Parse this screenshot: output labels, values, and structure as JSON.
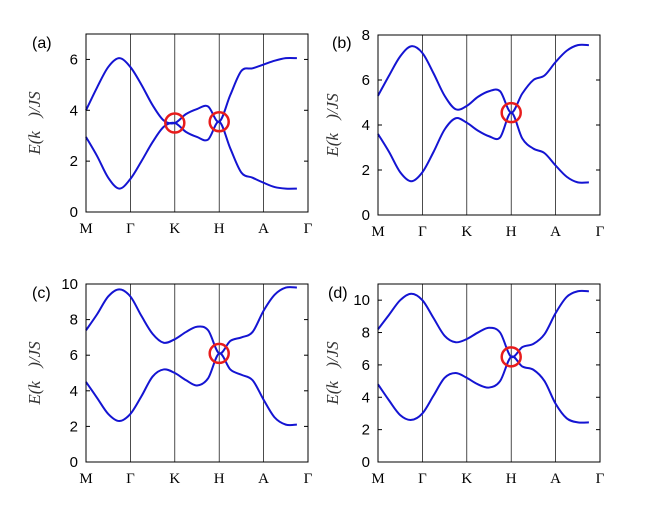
{
  "chart_data": [
    {
      "type": "line",
      "panel_label": "(a)",
      "ylabel": "E(k⃗)/JS",
      "ylim": [
        0,
        7
      ],
      "yticks": [
        0,
        2,
        4,
        6
      ],
      "x_ticks": [
        "M",
        "Γ",
        "K",
        "H",
        "A",
        "Γ"
      ],
      "series": [
        {
          "values": [
            [
              0,
              4.0
            ],
            [
              0.25,
              4.9
            ],
            [
              0.5,
              5.7
            ],
            [
              0.75,
              6.05
            ],
            [
              1,
              5.7
            ],
            [
              1.25,
              5.0
            ],
            [
              1.5,
              4.2
            ],
            [
              1.75,
              3.6
            ],
            [
              2,
              3.5
            ],
            [
              2.25,
              3.85
            ],
            [
              2.5,
              4.05
            ],
            [
              2.75,
              4.15
            ],
            [
              3,
              3.55
            ],
            [
              3.25,
              4.6
            ],
            [
              3.5,
              5.55
            ],
            [
              3.75,
              5.65
            ],
            [
              4,
              5.8
            ],
            [
              4.25,
              5.95
            ],
            [
              4.5,
              6.05
            ],
            [
              4.75,
              6.05
            ]
          ]
        },
        {
          "values": [
            [
              0,
              2.95
            ],
            [
              0.25,
              2.2
            ],
            [
              0.5,
              1.35
            ],
            [
              0.75,
              0.92
            ],
            [
              1,
              1.3
            ],
            [
              1.25,
              2.0
            ],
            [
              1.5,
              2.75
            ],
            [
              1.75,
              3.35
            ],
            [
              2,
              3.5
            ],
            [
              2.25,
              3.15
            ],
            [
              2.5,
              2.95
            ],
            [
              2.75,
              2.85
            ],
            [
              3,
              3.55
            ],
            [
              3.25,
              2.5
            ],
            [
              3.5,
              1.55
            ],
            [
              3.75,
              1.35
            ],
            [
              4,
              1.15
            ],
            [
              4.25,
              0.98
            ],
            [
              4.5,
              0.92
            ],
            [
              4.75,
              0.92
            ]
          ]
        }
      ],
      "crossings": [
        [
          2,
          3.5
        ],
        [
          3,
          3.55
        ]
      ]
    },
    {
      "type": "line",
      "panel_label": "(b)",
      "ylabel": "E(k⃗)/JS",
      "ylim": [
        0,
        8
      ],
      "yticks": [
        0,
        2,
        4,
        6,
        8
      ],
      "x_ticks": [
        "M",
        "Γ",
        "K",
        "H",
        "A",
        "Γ"
      ],
      "series": [
        {
          "values": [
            [
              0,
              5.3
            ],
            [
              0.25,
              6.2
            ],
            [
              0.5,
              7.05
            ],
            [
              0.75,
              7.5
            ],
            [
              1,
              7.2
            ],
            [
              1.25,
              6.3
            ],
            [
              1.5,
              5.3
            ],
            [
              1.75,
              4.7
            ],
            [
              2,
              4.85
            ],
            [
              2.25,
              5.25
            ],
            [
              2.5,
              5.5
            ],
            [
              2.75,
              5.5
            ],
            [
              3,
              4.55
            ],
            [
              3.25,
              5.4
            ],
            [
              3.5,
              6.0
            ],
            [
              3.75,
              6.2
            ],
            [
              4,
              6.8
            ],
            [
              4.25,
              7.3
            ],
            [
              4.5,
              7.55
            ],
            [
              4.75,
              7.55
            ]
          ]
        },
        {
          "values": [
            [
              0,
              3.6
            ],
            [
              0.25,
              2.8
            ],
            [
              0.5,
              1.9
            ],
            [
              0.75,
              1.5
            ],
            [
              1,
              1.9
            ],
            [
              1.25,
              2.8
            ],
            [
              1.5,
              3.8
            ],
            [
              1.75,
              4.3
            ],
            [
              2,
              4.1
            ],
            [
              2.25,
              3.75
            ],
            [
              2.5,
              3.5
            ],
            [
              2.75,
              3.45
            ],
            [
              3,
              4.55
            ],
            [
              3.25,
              3.4
            ],
            [
              3.5,
              2.95
            ],
            [
              3.75,
              2.75
            ],
            [
              4,
              2.2
            ],
            [
              4.25,
              1.7
            ],
            [
              4.5,
              1.45
            ],
            [
              4.75,
              1.45
            ]
          ]
        }
      ],
      "crossings": [
        [
          3,
          4.55
        ]
      ]
    },
    {
      "type": "line",
      "panel_label": "(c)",
      "ylabel": "E(k⃗)/JS",
      "ylim": [
        0,
        10
      ],
      "yticks": [
        0,
        2,
        4,
        6,
        8,
        10
      ],
      "x_ticks": [
        "M",
        "Γ",
        "K",
        "H",
        "A",
        "Γ"
      ],
      "series": [
        {
          "values": [
            [
              0,
              7.4
            ],
            [
              0.25,
              8.3
            ],
            [
              0.5,
              9.3
            ],
            [
              0.75,
              9.7
            ],
            [
              1,
              9.3
            ],
            [
              1.25,
              8.2
            ],
            [
              1.5,
              7.2
            ],
            [
              1.75,
              6.7
            ],
            [
              2,
              6.9
            ],
            [
              2.25,
              7.3
            ],
            [
              2.5,
              7.6
            ],
            [
              2.75,
              7.4
            ],
            [
              3,
              6.1
            ],
            [
              3.25,
              6.8
            ],
            [
              3.5,
              7.0
            ],
            [
              3.75,
              7.3
            ],
            [
              4,
              8.5
            ],
            [
              4.25,
              9.4
            ],
            [
              4.5,
              9.8
            ],
            [
              4.75,
              9.8
            ]
          ]
        },
        {
          "values": [
            [
              0,
              4.5
            ],
            [
              0.25,
              3.6
            ],
            [
              0.5,
              2.7
            ],
            [
              0.75,
              2.3
            ],
            [
              1,
              2.7
            ],
            [
              1.25,
              3.7
            ],
            [
              1.5,
              4.8
            ],
            [
              1.75,
              5.2
            ],
            [
              2,
              5.0
            ],
            [
              2.25,
              4.6
            ],
            [
              2.5,
              4.3
            ],
            [
              2.75,
              4.7
            ],
            [
              3,
              6.1
            ],
            [
              3.25,
              5.2
            ],
            [
              3.5,
              4.9
            ],
            [
              3.75,
              4.6
            ],
            [
              4,
              3.5
            ],
            [
              4.25,
              2.5
            ],
            [
              4.5,
              2.1
            ],
            [
              4.75,
              2.1
            ]
          ]
        }
      ],
      "crossings": [
        [
          3,
          6.1
        ]
      ]
    },
    {
      "type": "line",
      "panel_label": "(d)",
      "ylabel": "E(k⃗)/JS",
      "ylim": [
        0,
        11
      ],
      "yticks": [
        0,
        2,
        4,
        6,
        8,
        10
      ],
      "x_ticks": [
        "M",
        "Γ",
        "K",
        "H",
        "A",
        "Γ"
      ],
      "series": [
        {
          "values": [
            [
              0,
              8.2
            ],
            [
              0.25,
              9.1
            ],
            [
              0.5,
              10.0
            ],
            [
              0.75,
              10.4
            ],
            [
              1,
              10.0
            ],
            [
              1.25,
              8.9
            ],
            [
              1.5,
              7.8
            ],
            [
              1.75,
              7.4
            ],
            [
              2,
              7.6
            ],
            [
              2.25,
              8.0
            ],
            [
              2.5,
              8.3
            ],
            [
              2.75,
              8.0
            ],
            [
              3,
              6.5
            ],
            [
              3.25,
              7.1
            ],
            [
              3.5,
              7.3
            ],
            [
              3.75,
              7.9
            ],
            [
              4,
              9.2
            ],
            [
              4.25,
              10.2
            ],
            [
              4.5,
              10.55
            ],
            [
              4.75,
              10.55
            ]
          ]
        },
        {
          "values": [
            [
              0,
              4.8
            ],
            [
              0.25,
              3.8
            ],
            [
              0.5,
              2.9
            ],
            [
              0.75,
              2.6
            ],
            [
              1,
              3.0
            ],
            [
              1.25,
              4.1
            ],
            [
              1.5,
              5.2
            ],
            [
              1.75,
              5.5
            ],
            [
              2,
              5.2
            ],
            [
              2.25,
              4.8
            ],
            [
              2.5,
              4.6
            ],
            [
              2.75,
              5.0
            ],
            [
              3,
              6.5
            ],
            [
              3.25,
              5.9
            ],
            [
              3.5,
              5.7
            ],
            [
              3.75,
              5.0
            ],
            [
              4,
              3.6
            ],
            [
              4.25,
              2.7
            ],
            [
              4.5,
              2.45
            ],
            [
              4.75,
              2.45
            ]
          ]
        }
      ],
      "crossings": [
        [
          3,
          6.5
        ]
      ]
    }
  ],
  "colors": {
    "band": "#1414d2",
    "marker": "#e81c1c",
    "axis": "#000000",
    "divider": "#000000"
  }
}
